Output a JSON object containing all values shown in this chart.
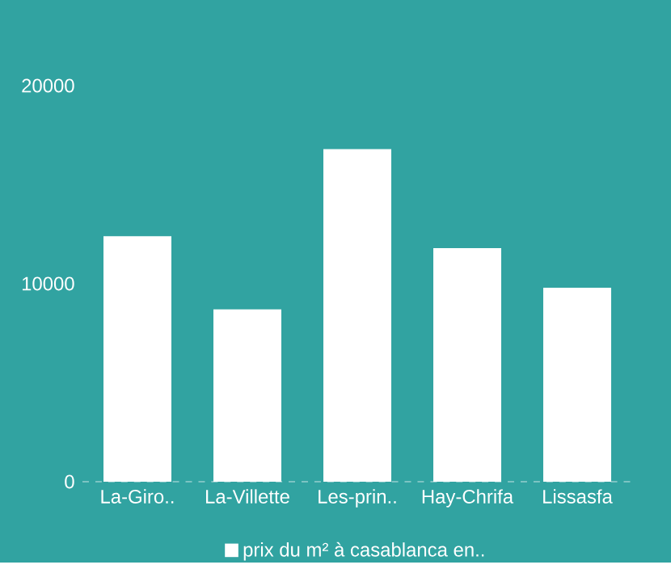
{
  "chart_data": {
    "type": "bar",
    "categories": [
      "La-Giro..",
      "La-Villette",
      "Les-prin..",
      "Hay-Chrifa",
      "Lissasfa"
    ],
    "series": [
      {
        "name": "prix du m² à casablanca en..",
        "color": "#ffffff",
        "values": [
          12400,
          8700,
          16800,
          11800,
          9800
        ]
      }
    ],
    "ylim": [
      0,
      20000
    ],
    "yticks": [
      0,
      10000,
      20000
    ],
    "legend": "bottom"
  }
}
